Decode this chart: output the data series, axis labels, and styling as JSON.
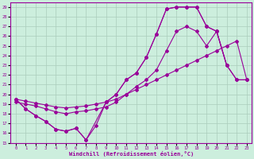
{
  "xlabel": "Windchill (Refroidissement éolien,°C)",
  "bg_color": "#cceedd",
  "grid_color": "#aaccbb",
  "line_color": "#990099",
  "xlim": [
    -0.5,
    23.5
  ],
  "ylim": [
    15,
    29.5
  ],
  "xticks": [
    0,
    1,
    2,
    3,
    4,
    5,
    6,
    7,
    8,
    9,
    10,
    11,
    12,
    13,
    14,
    15,
    16,
    17,
    18,
    19,
    20,
    21,
    22,
    23
  ],
  "yticks": [
    15,
    16,
    17,
    18,
    19,
    20,
    21,
    22,
    23,
    24,
    25,
    26,
    27,
    28,
    29
  ],
  "curve_A_x": [
    0,
    1,
    2,
    3,
    4,
    5,
    6,
    7,
    9,
    10,
    11,
    12,
    13,
    14,
    15,
    16,
    17,
    18,
    19,
    20,
    21
  ],
  "curve_A_y": [
    19.5,
    18.5,
    17.8,
    17.2,
    16.4,
    16.2,
    16.5,
    15.3,
    19.2,
    20.0,
    21.5,
    22.2,
    23.8,
    26.2,
    28.8,
    29.0,
    29.0,
    29.0,
    27.0,
    26.5,
    23.0
  ],
  "curve_B_x": [
    0,
    1,
    2,
    3,
    4,
    5,
    6,
    7,
    8,
    9,
    10,
    11,
    12,
    13,
    14,
    15,
    16,
    17,
    18,
    19,
    20,
    21,
    22,
    23
  ],
  "curve_B_y": [
    19.5,
    19.3,
    19.1,
    18.9,
    18.7,
    18.6,
    18.7,
    18.8,
    19.0,
    19.2,
    19.5,
    20.0,
    20.5,
    21.0,
    21.5,
    22.0,
    22.5,
    23.0,
    23.5,
    24.0,
    24.5,
    25.0,
    25.5,
    21.5
  ],
  "curve_C_x": [
    0,
    1,
    2,
    3,
    4,
    5,
    6,
    7,
    8,
    9,
    10,
    11,
    12,
    13,
    14,
    15,
    16,
    17,
    18,
    19,
    20,
    21,
    22,
    23
  ],
  "curve_C_y": [
    19.2,
    19.0,
    18.8,
    18.5,
    18.2,
    18.0,
    18.2,
    18.3,
    18.5,
    18.7,
    19.2,
    20.0,
    20.8,
    21.5,
    22.5,
    24.5,
    26.5,
    27.0,
    26.5,
    25.0,
    26.5,
    23.0,
    21.5,
    21.5
  ],
  "curve_D_x": [
    0,
    1,
    2,
    3,
    4,
    5,
    6,
    7,
    8,
    9,
    10,
    11,
    12,
    13,
    14,
    15,
    16,
    17,
    18,
    19,
    20,
    21,
    22,
    23
  ],
  "curve_D_y": [
    19.5,
    18.5,
    17.8,
    17.2,
    16.4,
    16.2,
    16.5,
    15.3,
    16.8,
    19.2,
    20.0,
    21.5,
    22.2,
    23.8,
    26.2,
    28.8,
    29.0,
    29.0,
    29.0,
    27.0,
    26.5,
    23.0,
    21.5,
    21.5
  ]
}
